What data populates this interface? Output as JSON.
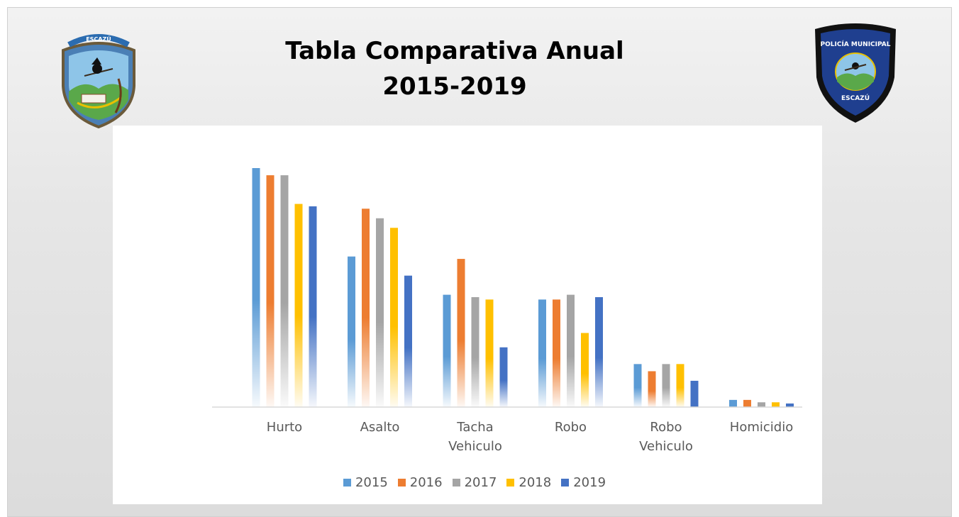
{
  "header": {
    "title_line1": "Tabla Comparativa Anual",
    "title_line2": "2015-2019"
  },
  "logos": {
    "left": {
      "text": "ESCAZÚ"
    },
    "right": {
      "text_top": "POLICÍA MUNICIPAL",
      "text_bottom": "ESCAZÚ"
    }
  },
  "colors": {
    "2015": "#5b9bd5",
    "2016": "#ed7d31",
    "2017": "#a5a5a5",
    "2018": "#ffc000",
    "2019": "#4472c4"
  },
  "chart_data": {
    "type": "bar",
    "title": "",
    "xlabel": "",
    "ylabel": "",
    "ylim": [
      0,
      100
    ],
    "grid": false,
    "legend": "bottom",
    "categories": [
      "Hurto",
      "Asalto",
      "Tacha Vehiculo",
      "Robo",
      "Robo Vehiculo",
      "Homicidio"
    ],
    "category_lines": [
      [
        "Hurto"
      ],
      [
        "Asalto"
      ],
      [
        "Tacha",
        "Vehiculo"
      ],
      [
        "Robo"
      ],
      [
        "Robo",
        "Vehiculo"
      ],
      [
        "Homicidio"
      ]
    ],
    "series": [
      {
        "name": "2015",
        "values": [
          100,
          63,
          47,
          45,
          18,
          3
        ]
      },
      {
        "name": "2016",
        "values": [
          97,
          83,
          62,
          45,
          15,
          3
        ]
      },
      {
        "name": "2017",
        "values": [
          97,
          79,
          46,
          47,
          18,
          2
        ]
      },
      {
        "name": "2018",
        "values": [
          85,
          75,
          45,
          31,
          18,
          2
        ]
      },
      {
        "name": "2019",
        "values": [
          84,
          55,
          25,
          46,
          11,
          1.5
        ]
      }
    ]
  }
}
